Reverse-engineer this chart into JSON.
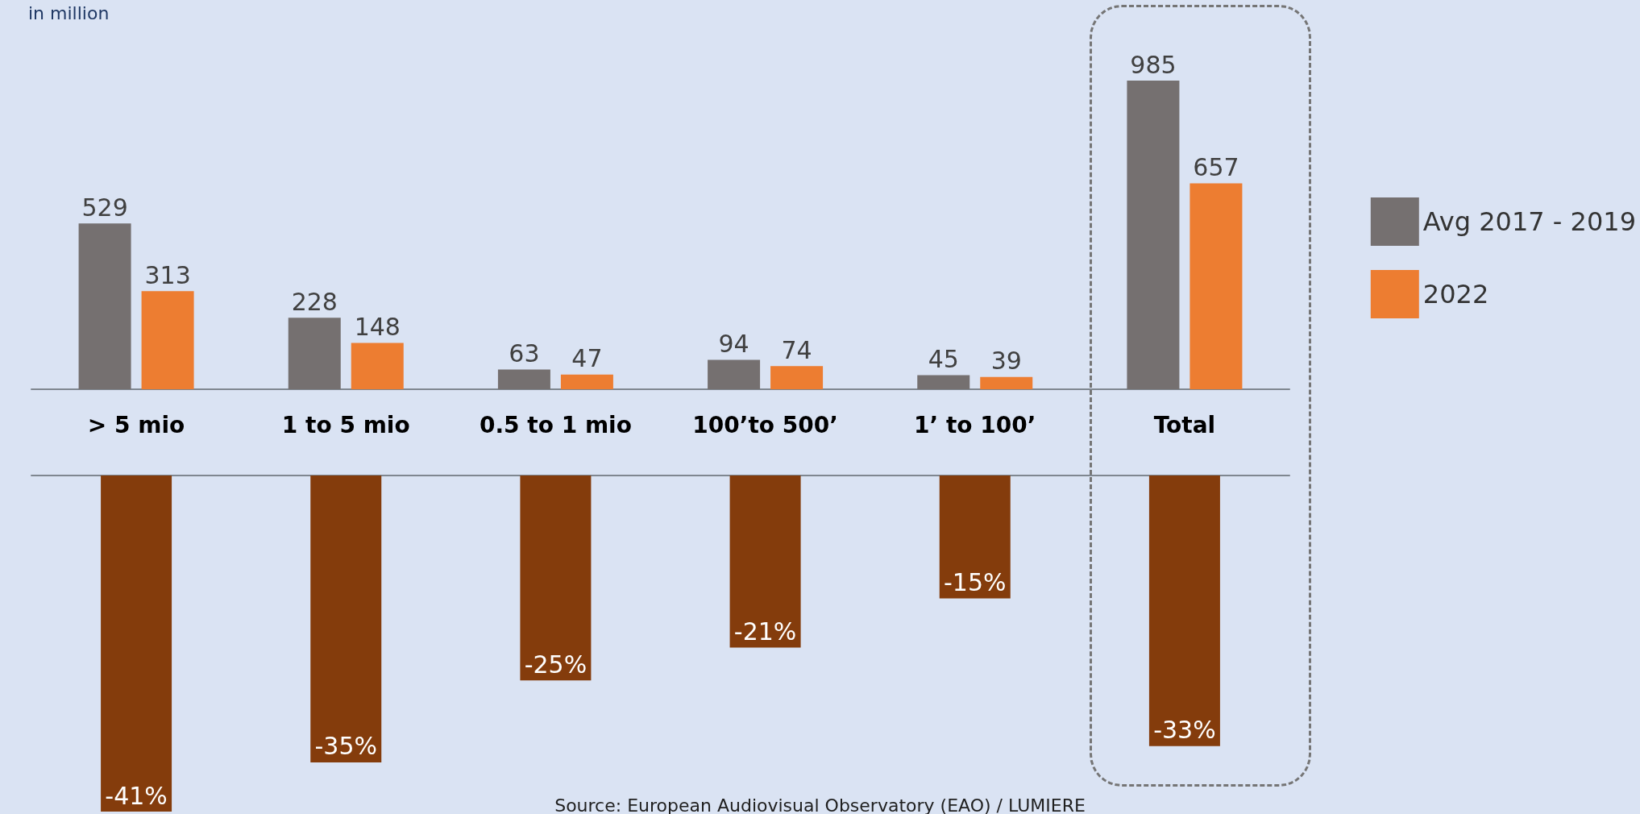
{
  "chart_data": [
    {
      "type": "bar",
      "subtitle": "in million",
      "categories": [
        "> 5 mio",
        "1 to 5 mio",
        "0.5 to 1 mio",
        "100’to 500’",
        "1’ to 100’",
        "Total"
      ],
      "tick_labels": "x",
      "data_labels": true,
      "legend": "right",
      "series": [
        {
          "name": "Avg 2017 - 2019",
          "color": "#757070",
          "values": [
            529,
            228,
            63,
            94,
            45,
            985
          ]
        },
        {
          "name": "2022",
          "color": "#ed7d31",
          "values": [
            313,
            148,
            47,
            74,
            39,
            657
          ]
        }
      ]
    },
    {
      "type": "bar",
      "categories": [
        null,
        null,
        null,
        null,
        null,
        null
      ],
      "color": "#843c0c",
      "values": [
        -41,
        -35,
        -25,
        -21,
        -15,
        -33
      ],
      "value_labels": [
        "-41%",
        "-35%",
        "-25%",
        "-21%",
        "-15%",
        "-33%"
      ],
      "annotations": [
        "Source: European Audiovisual Observatory (EAO) / LUMIERE"
      ]
    }
  ]
}
